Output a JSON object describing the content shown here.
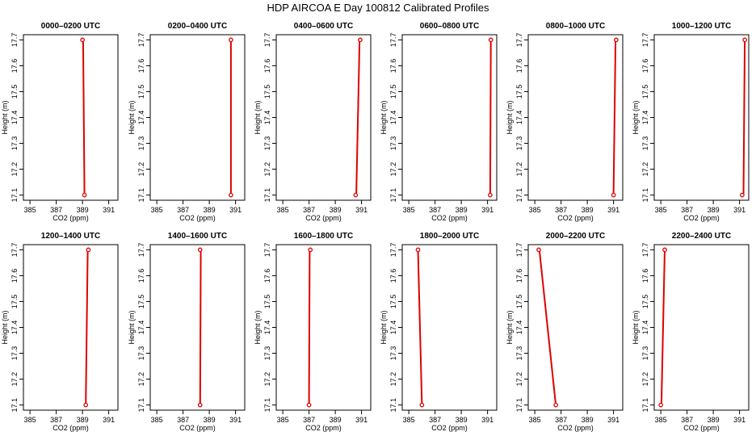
{
  "figure": {
    "title": "HDP AIRCOA E  Day 100812  Calibrated Profiles"
  },
  "colors": {
    "series": "#e00000",
    "axis": "#000000",
    "background": "#ffffff"
  },
  "chart_data": [
    {
      "type": "line",
      "title": "0000–0200 UTC",
      "xlabel": "CO2 (ppm)",
      "ylabel": "Height (m)",
      "xlim": [
        384.5,
        391.7
      ],
      "ylim": [
        17.08,
        17.72
      ],
      "xticks": [
        385,
        387,
        389,
        391
      ],
      "yticks": [
        17.1,
        17.2,
        17.3,
        17.4,
        17.5,
        17.6,
        17.7
      ],
      "series": [
        {
          "x": [
            389.15,
            389.05
          ],
          "y": [
            17.1,
            17.7
          ]
        }
      ],
      "markers": [
        {
          "x": 389.15,
          "y": 17.1
        },
        {
          "x": 389.0,
          "y": 17.7
        }
      ]
    },
    {
      "type": "line",
      "title": "0200–0400 UTC",
      "xlabel": "CO2 (ppm)",
      "ylabel": "Height (m)",
      "xlim": [
        384.5,
        391.7
      ],
      "ylim": [
        17.08,
        17.72
      ],
      "xticks": [
        385,
        387,
        389,
        391
      ],
      "yticks": [
        17.1,
        17.2,
        17.3,
        17.4,
        17.5,
        17.6,
        17.7
      ],
      "series": [
        {
          "x": [
            390.65,
            390.65
          ],
          "y": [
            17.1,
            17.7
          ]
        }
      ],
      "markers": [
        {
          "x": 390.65,
          "y": 17.1
        },
        {
          "x": 390.65,
          "y": 17.7
        }
      ]
    },
    {
      "type": "line",
      "title": "0400–0600 UTC",
      "xlabel": "CO2 (ppm)",
      "ylabel": "Height (m)",
      "xlim": [
        384.5,
        391.7
      ],
      "ylim": [
        17.08,
        17.72
      ],
      "xticks": [
        385,
        387,
        389,
        391
      ],
      "yticks": [
        17.1,
        17.2,
        17.3,
        17.4,
        17.5,
        17.6,
        17.7
      ],
      "series": [
        {
          "x": [
            390.6,
            390.85
          ],
          "y": [
            17.1,
            17.7
          ]
        }
      ],
      "markers": [
        {
          "x": 390.55,
          "y": 17.1
        },
        {
          "x": 390.9,
          "y": 17.7
        }
      ]
    },
    {
      "type": "line",
      "title": "0600–0800 UTC",
      "xlabel": "CO2 (ppm)",
      "ylabel": "Height (m)",
      "xlim": [
        384.5,
        391.7
      ],
      "ylim": [
        17.08,
        17.72
      ],
      "xticks": [
        385,
        387,
        389,
        391
      ],
      "yticks": [
        17.1,
        17.2,
        17.3,
        17.4,
        17.5,
        17.6,
        17.7
      ],
      "series": [
        {
          "x": [
            391.2,
            391.25
          ],
          "y": [
            17.1,
            17.7
          ]
        }
      ],
      "markers": [
        {
          "x": 391.2,
          "y": 17.1
        },
        {
          "x": 391.25,
          "y": 17.7
        }
      ]
    },
    {
      "type": "line",
      "title": "0800–1000 UTC",
      "xlabel": "CO2 (ppm)",
      "ylabel": "Height (m)",
      "xlim": [
        384.5,
        391.7
      ],
      "ylim": [
        17.08,
        17.72
      ],
      "xticks": [
        385,
        387,
        389,
        391
      ],
      "yticks": [
        17.1,
        17.2,
        17.3,
        17.4,
        17.5,
        17.6,
        17.7
      ],
      "series": [
        {
          "x": [
            391.0,
            391.15
          ],
          "y": [
            17.1,
            17.7
          ]
        }
      ],
      "markers": [
        {
          "x": 391.0,
          "y": 17.1
        },
        {
          "x": 391.2,
          "y": 17.7
        }
      ]
    },
    {
      "type": "line",
      "title": "1000–1200 UTC",
      "xlabel": "CO2 (ppm)",
      "ylabel": "Height (m)",
      "xlim": [
        384.5,
        391.7
      ],
      "ylim": [
        17.08,
        17.72
      ],
      "xticks": [
        385,
        387,
        389,
        391
      ],
      "yticks": [
        17.1,
        17.2,
        17.3,
        17.4,
        17.5,
        17.6,
        17.7
      ],
      "series": [
        {
          "x": [
            391.3,
            391.4
          ],
          "y": [
            17.1,
            17.7
          ]
        }
      ],
      "markers": [
        {
          "x": 391.2,
          "y": 17.1
        },
        {
          "x": 391.4,
          "y": 17.7
        }
      ]
    },
    {
      "type": "line",
      "title": "1200–1400 UTC",
      "xlabel": "CO2 (ppm)",
      "ylabel": "Height (m)",
      "xlim": [
        384.5,
        391.7
      ],
      "ylim": [
        17.08,
        17.72
      ],
      "xticks": [
        385,
        387,
        389,
        391
      ],
      "yticks": [
        17.1,
        17.2,
        17.3,
        17.4,
        17.5,
        17.6,
        17.7
      ],
      "series": [
        {
          "x": [
            389.25,
            389.4
          ],
          "y": [
            17.1,
            17.7
          ]
        }
      ],
      "markers": [
        {
          "x": 389.25,
          "y": 17.1
        },
        {
          "x": 389.45,
          "y": 17.7
        }
      ]
    },
    {
      "type": "line",
      "title": "1400–1600 UTC",
      "xlabel": "CO2 (ppm)",
      "ylabel": "Height (m)",
      "xlim": [
        384.5,
        391.7
      ],
      "ylim": [
        17.08,
        17.72
      ],
      "xticks": [
        385,
        387,
        389,
        391
      ],
      "yticks": [
        17.1,
        17.2,
        17.3,
        17.4,
        17.5,
        17.6,
        17.7
      ],
      "series": [
        {
          "x": [
            388.3,
            388.35
          ],
          "y": [
            17.1,
            17.7
          ]
        }
      ],
      "markers": [
        {
          "x": 388.3,
          "y": 17.1
        },
        {
          "x": 388.3,
          "y": 17.7
        }
      ]
    },
    {
      "type": "line",
      "title": "1600–1800 UTC",
      "xlabel": "CO2 (ppm)",
      "ylabel": "Height (m)",
      "xlim": [
        384.5,
        391.7
      ],
      "ylim": [
        17.08,
        17.72
      ],
      "xticks": [
        385,
        387,
        389,
        391
      ],
      "yticks": [
        17.1,
        17.2,
        17.3,
        17.4,
        17.5,
        17.6,
        17.7
      ],
      "series": [
        {
          "x": [
            387.0,
            387.05
          ],
          "y": [
            17.1,
            17.7
          ]
        }
      ],
      "markers": [
        {
          "x": 387.0,
          "y": 17.1
        },
        {
          "x": 387.1,
          "y": 17.7
        }
      ]
    },
    {
      "type": "line",
      "title": "1800–2000 UTC",
      "xlabel": "CO2 (ppm)",
      "ylabel": "Height (m)",
      "xlim": [
        384.5,
        391.7
      ],
      "ylim": [
        17.08,
        17.72
      ],
      "xticks": [
        385,
        387,
        389,
        391
      ],
      "yticks": [
        17.1,
        17.2,
        17.3,
        17.4,
        17.5,
        17.6,
        17.7
      ],
      "series": [
        {
          "x": [
            386.0,
            385.7
          ],
          "y": [
            17.1,
            17.7
          ]
        }
      ],
      "markers": [
        {
          "x": 386.0,
          "y": 17.1
        },
        {
          "x": 385.7,
          "y": 17.7
        }
      ]
    },
    {
      "type": "line",
      "title": "2000–2200 UTC",
      "xlabel": "CO2 (ppm)",
      "ylabel": "Height (m)",
      "xlim": [
        384.5,
        391.7
      ],
      "ylim": [
        17.08,
        17.72
      ],
      "xticks": [
        385,
        387,
        389,
        391
      ],
      "yticks": [
        17.1,
        17.2,
        17.3,
        17.4,
        17.5,
        17.6,
        17.7
      ],
      "series": [
        {
          "x": [
            386.6,
            385.35
          ],
          "y": [
            17.1,
            17.7
          ]
        }
      ],
      "markers": [
        {
          "x": 386.6,
          "y": 17.1
        },
        {
          "x": 385.3,
          "y": 17.7
        }
      ]
    },
    {
      "type": "line",
      "title": "2200–2400 UTC",
      "xlabel": "CO2 (ppm)",
      "ylabel": "Height (m)",
      "xlim": [
        384.5,
        391.7
      ],
      "ylim": [
        17.08,
        17.72
      ],
      "xticks": [
        385,
        387,
        389,
        391
      ],
      "yticks": [
        17.1,
        17.2,
        17.3,
        17.4,
        17.5,
        17.6,
        17.7
      ],
      "series": [
        {
          "x": [
            385.05,
            385.3
          ],
          "y": [
            17.1,
            17.7
          ]
        }
      ],
      "markers": [
        {
          "x": 385.0,
          "y": 17.1
        },
        {
          "x": 385.3,
          "y": 17.7
        }
      ]
    }
  ]
}
